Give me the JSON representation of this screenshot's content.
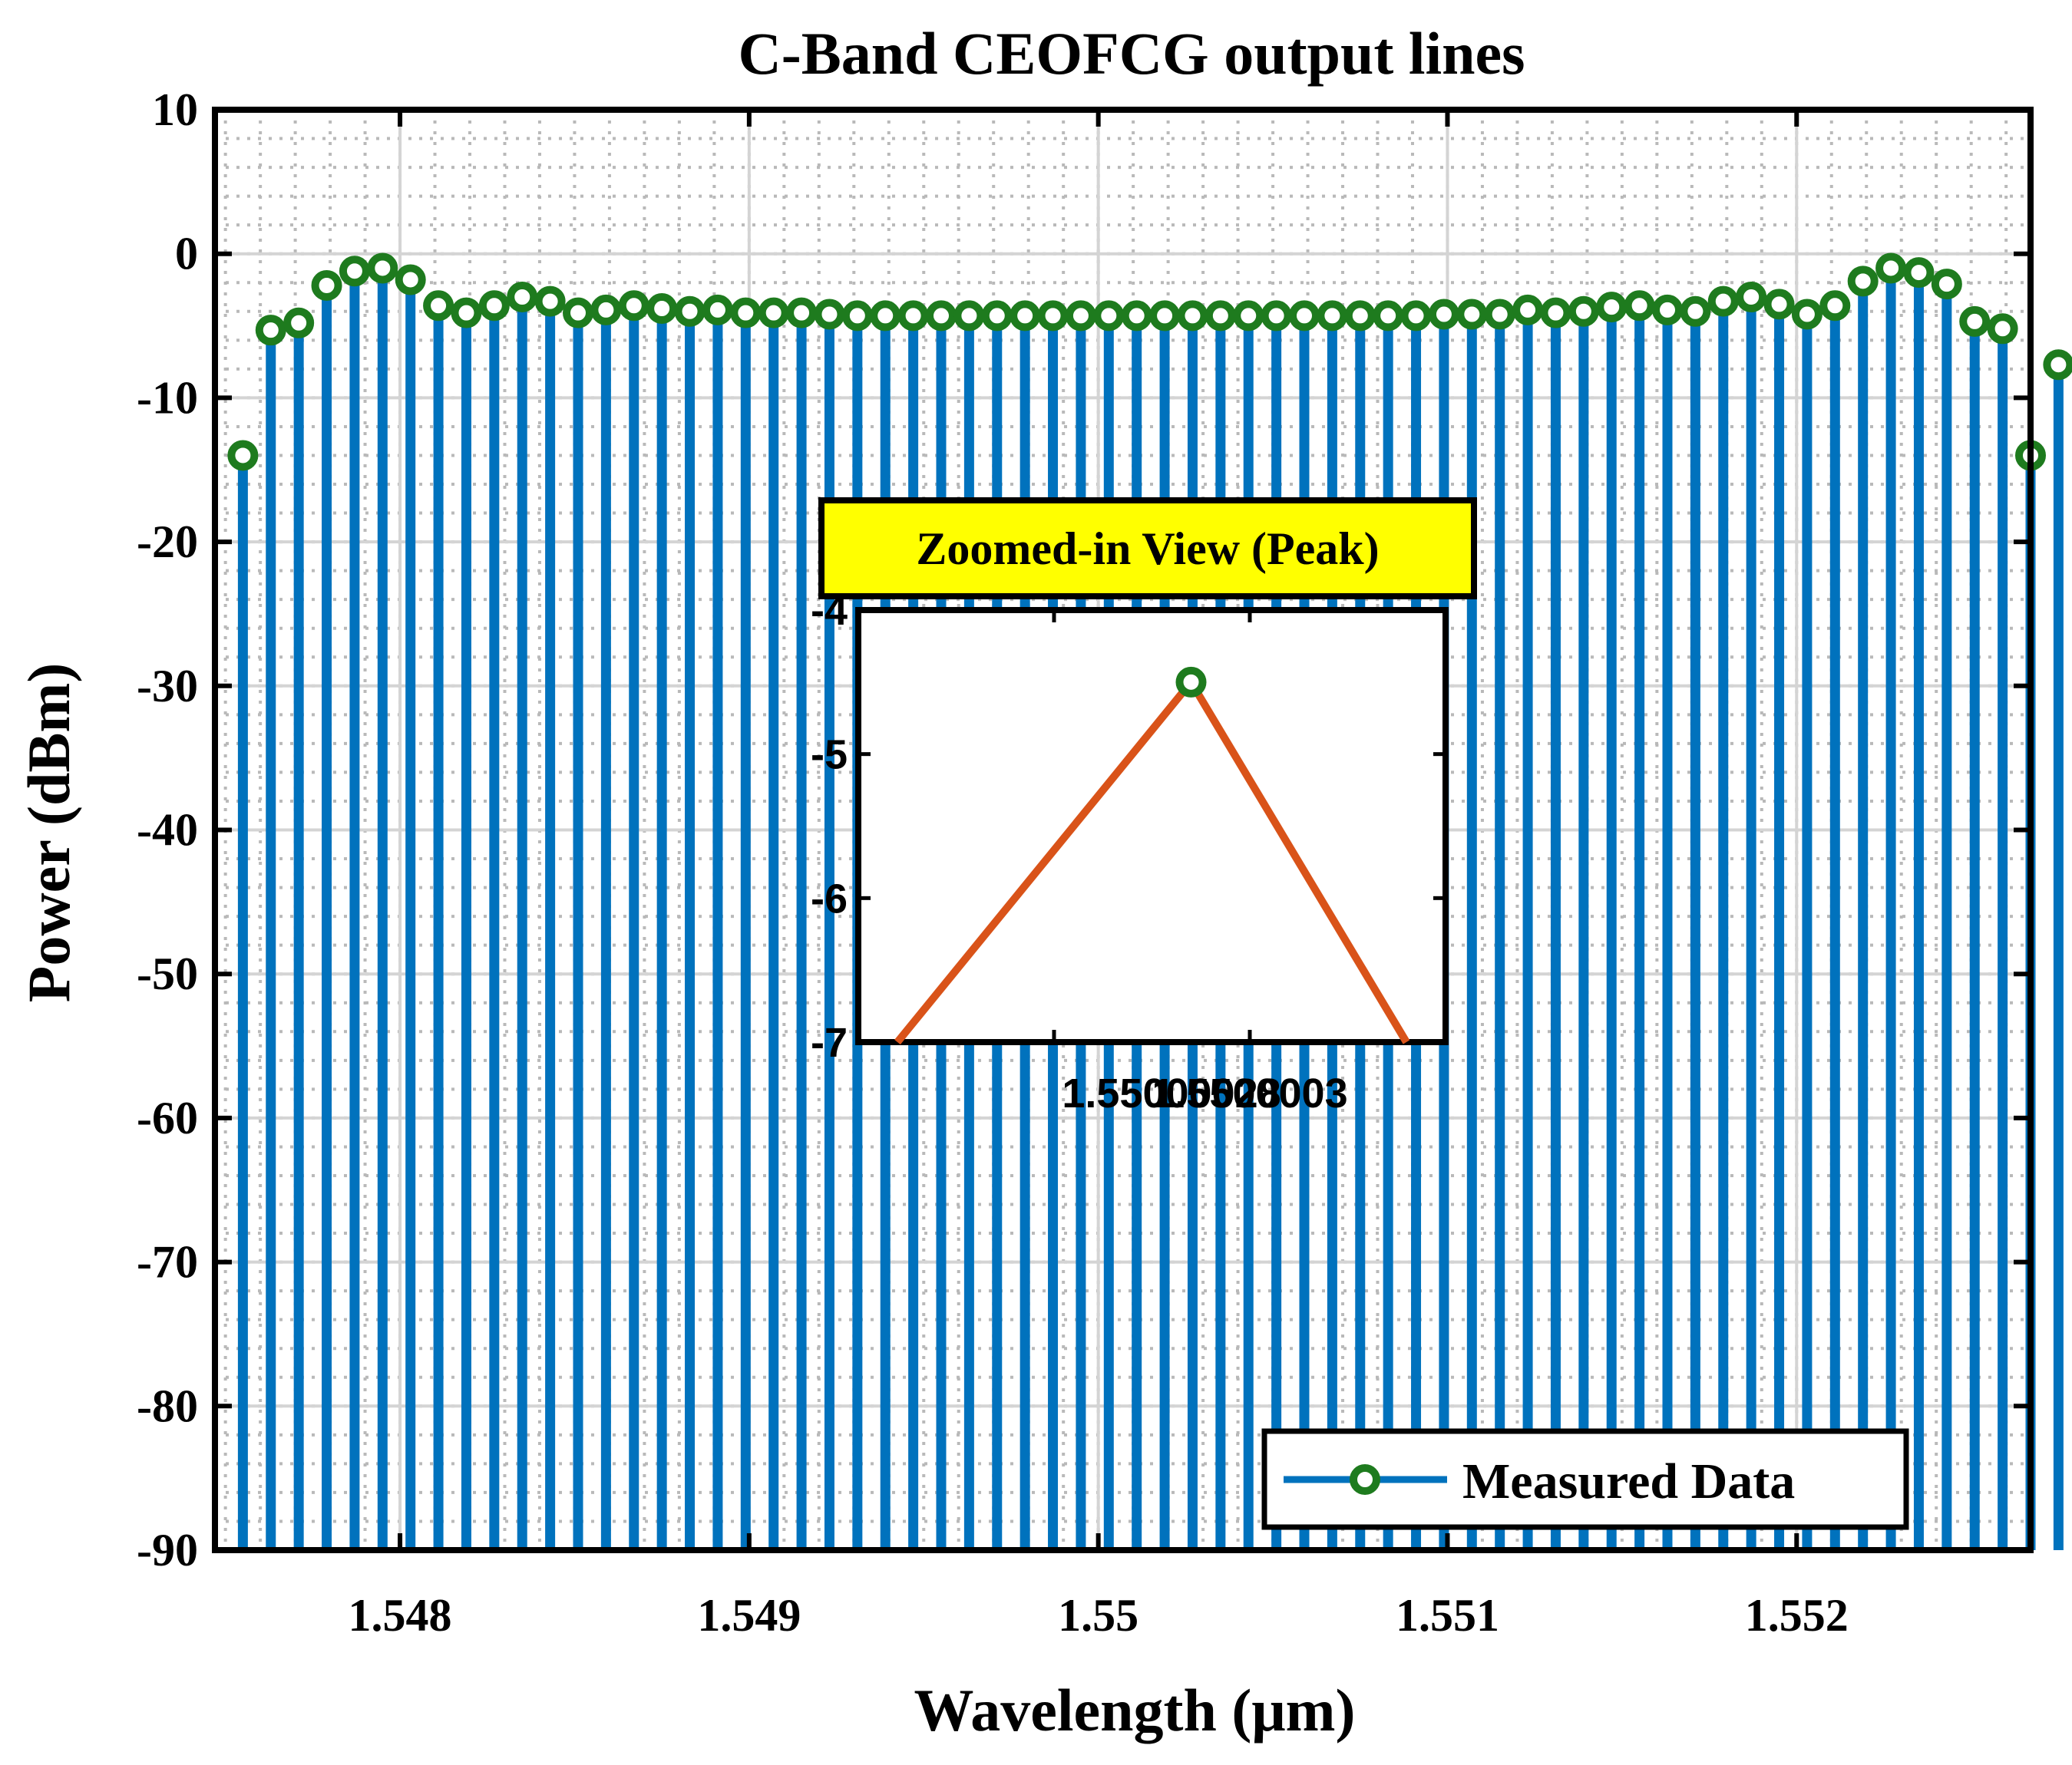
{
  "chart_data": [
    {
      "type": "stem",
      "title": "C-Band CEOFCG output lines",
      "xlabel": "Wavelength (μm)",
      "ylabel": "Power (dBm)",
      "xlim": [
        1.54747,
        1.55267
      ],
      "ylim": [
        -90,
        10
      ],
      "xticks": [
        1.548,
        1.549,
        1.55,
        1.551,
        1.552
      ],
      "xtick_labels": [
        "1.548",
        "1.549",
        "1.55",
        "1.551",
        "1.552"
      ],
      "yticks": [
        10,
        0,
        -10,
        -20,
        -30,
        -40,
        -50,
        -60,
        -70,
        -80,
        -90
      ],
      "ytick_labels": [
        "10",
        "0",
        "-10",
        "-20",
        "-30",
        "-40",
        "-50",
        "-60",
        "-70",
        "-80",
        "-90"
      ],
      "grid": true,
      "minor_grid": true,
      "legend": {
        "entries": [
          "Measured Data"
        ],
        "location": "bottom-right"
      },
      "colors": {
        "stem": "#0072BD",
        "marker_edge": "#1E7B1E",
        "marker_fill": "#FFFFFF"
      },
      "series": [
        {
          "name": "Measured Data",
          "x_start": 1.54755,
          "x_step": 8e-05,
          "values": [
            -14,
            -5.3,
            -4.8,
            -2.2,
            -1.2,
            -1.0,
            -1.8,
            -3.6,
            -4.1,
            -3.6,
            -3.0,
            -3.3,
            -4.1,
            -3.9,
            -3.6,
            -3.8,
            -4.0,
            -3.9,
            -4.1,
            -4.1,
            -4.1,
            -4.2,
            -4.3,
            -4.3,
            -4.3,
            -4.3,
            -4.3,
            -4.3,
            -4.3,
            -4.3,
            -4.3,
            -4.3,
            -4.3,
            -4.3,
            -4.3,
            -4.3,
            -4.3,
            -4.3,
            -4.3,
            -4.3,
            -4.3,
            -4.3,
            -4.3,
            -4.2,
            -4.2,
            -4.2,
            -3.9,
            -4.1,
            -4.0,
            -3.7,
            -3.6,
            -3.9,
            -4.0,
            -3.3,
            -3.0,
            -3.5,
            -4.2,
            -3.6,
            -1.9,
            -1.0,
            -1.3,
            -2.1,
            -4.7,
            -5.2,
            -14,
            -7.7
          ]
        }
      ]
    },
    {
      "type": "line",
      "title": "Zoomed-in View (Peak)",
      "xlim": [
        1.5500002,
        1.55000035
      ],
      "ylim": [
        -7,
        -4
      ],
      "xticks": [
        1.5500002,
        1.55000025,
        1.5500003,
        1.55000035
      ],
      "labeled_xticks": [
        1.55000028,
        1.5500003
      ],
      "xtick_labels": [
        "1.55000028",
        "1.5500003"
      ],
      "yticks": [
        -4,
        -5,
        -6,
        -7
      ],
      "ytick_labels": [
        "-4",
        "-5",
        "-6",
        "-7"
      ],
      "colors": {
        "line": "#D95319",
        "marker_edge": "#1E7B1E",
        "title_box": "#FFFF00"
      },
      "series": [
        {
          "x": [
            1.55000021,
            1.550000285,
            1.55000034
          ],
          "y": [
            -7,
            -4.5,
            -7
          ]
        }
      ],
      "peak": {
        "x": 1.550000285,
        "y": -4.5
      }
    }
  ]
}
